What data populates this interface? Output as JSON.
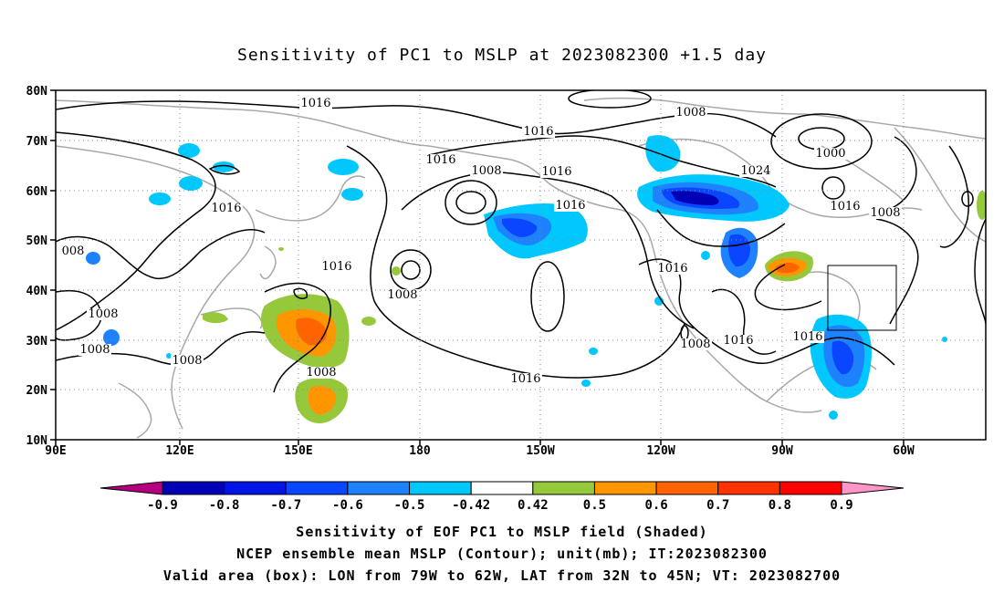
{
  "title": "Sensitivity of PC1 to MSLP at 2023082300 +1.5 day",
  "axes": {
    "lat_labels": [
      "80N",
      "70N",
      "60N",
      "50N",
      "40N",
      "30N",
      "20N",
      "10N"
    ],
    "lon_labels": [
      "90E",
      "120E",
      "150E",
      "180",
      "150W",
      "120W",
      "90W",
      "60W"
    ]
  },
  "contour_labels": [
    {
      "text": "1016"
    },
    {
      "text": "1008"
    },
    {
      "text": "1016"
    },
    {
      "text": "1000"
    },
    {
      "text": "1016"
    },
    {
      "text": "1016"
    },
    {
      "text": "1008"
    },
    {
      "text": "1016"
    },
    {
      "text": "1016"
    },
    {
      "text": "1024"
    },
    {
      "text": "1016"
    },
    {
      "text": "1008"
    },
    {
      "text": "1016"
    },
    {
      "text": "008"
    },
    {
      "text": "1008"
    },
    {
      "text": "1008"
    },
    {
      "text": "1008"
    },
    {
      "text": "1008"
    },
    {
      "text": "1016"
    },
    {
      "text": "1008"
    },
    {
      "text": "1016"
    },
    {
      "text": "1016"
    },
    {
      "text": "1008"
    },
    {
      "text": "1016"
    }
  ],
  "colorbar": {
    "labels": [
      "-0.9",
      "-0.8",
      "-0.7",
      "-0.6",
      "-0.5",
      "-0.42",
      "0.42",
      "0.5",
      "0.6",
      "0.7",
      "0.8",
      "0.9"
    ],
    "colors": [
      "#b4007f",
      "#0000b4",
      "#0014e6",
      "#0a46ff",
      "#1e82ff",
      "#00c8ff",
      "#ffffff",
      "#96c83c",
      "#ff9600",
      "#ff6400",
      "#ff3200",
      "#ff0000",
      "#ff96c8"
    ]
  },
  "legend": {
    "line1": "Sensitivity of EOF PC1 to MSLP field (Shaded)",
    "line2": "NCEP ensemble mean MSLP (Contour); unit(mb); IT:2023082300",
    "line3": "Valid area (box): LON from 79W to 62W, LAT from 32N to 45N; VT: 2023082700"
  }
}
